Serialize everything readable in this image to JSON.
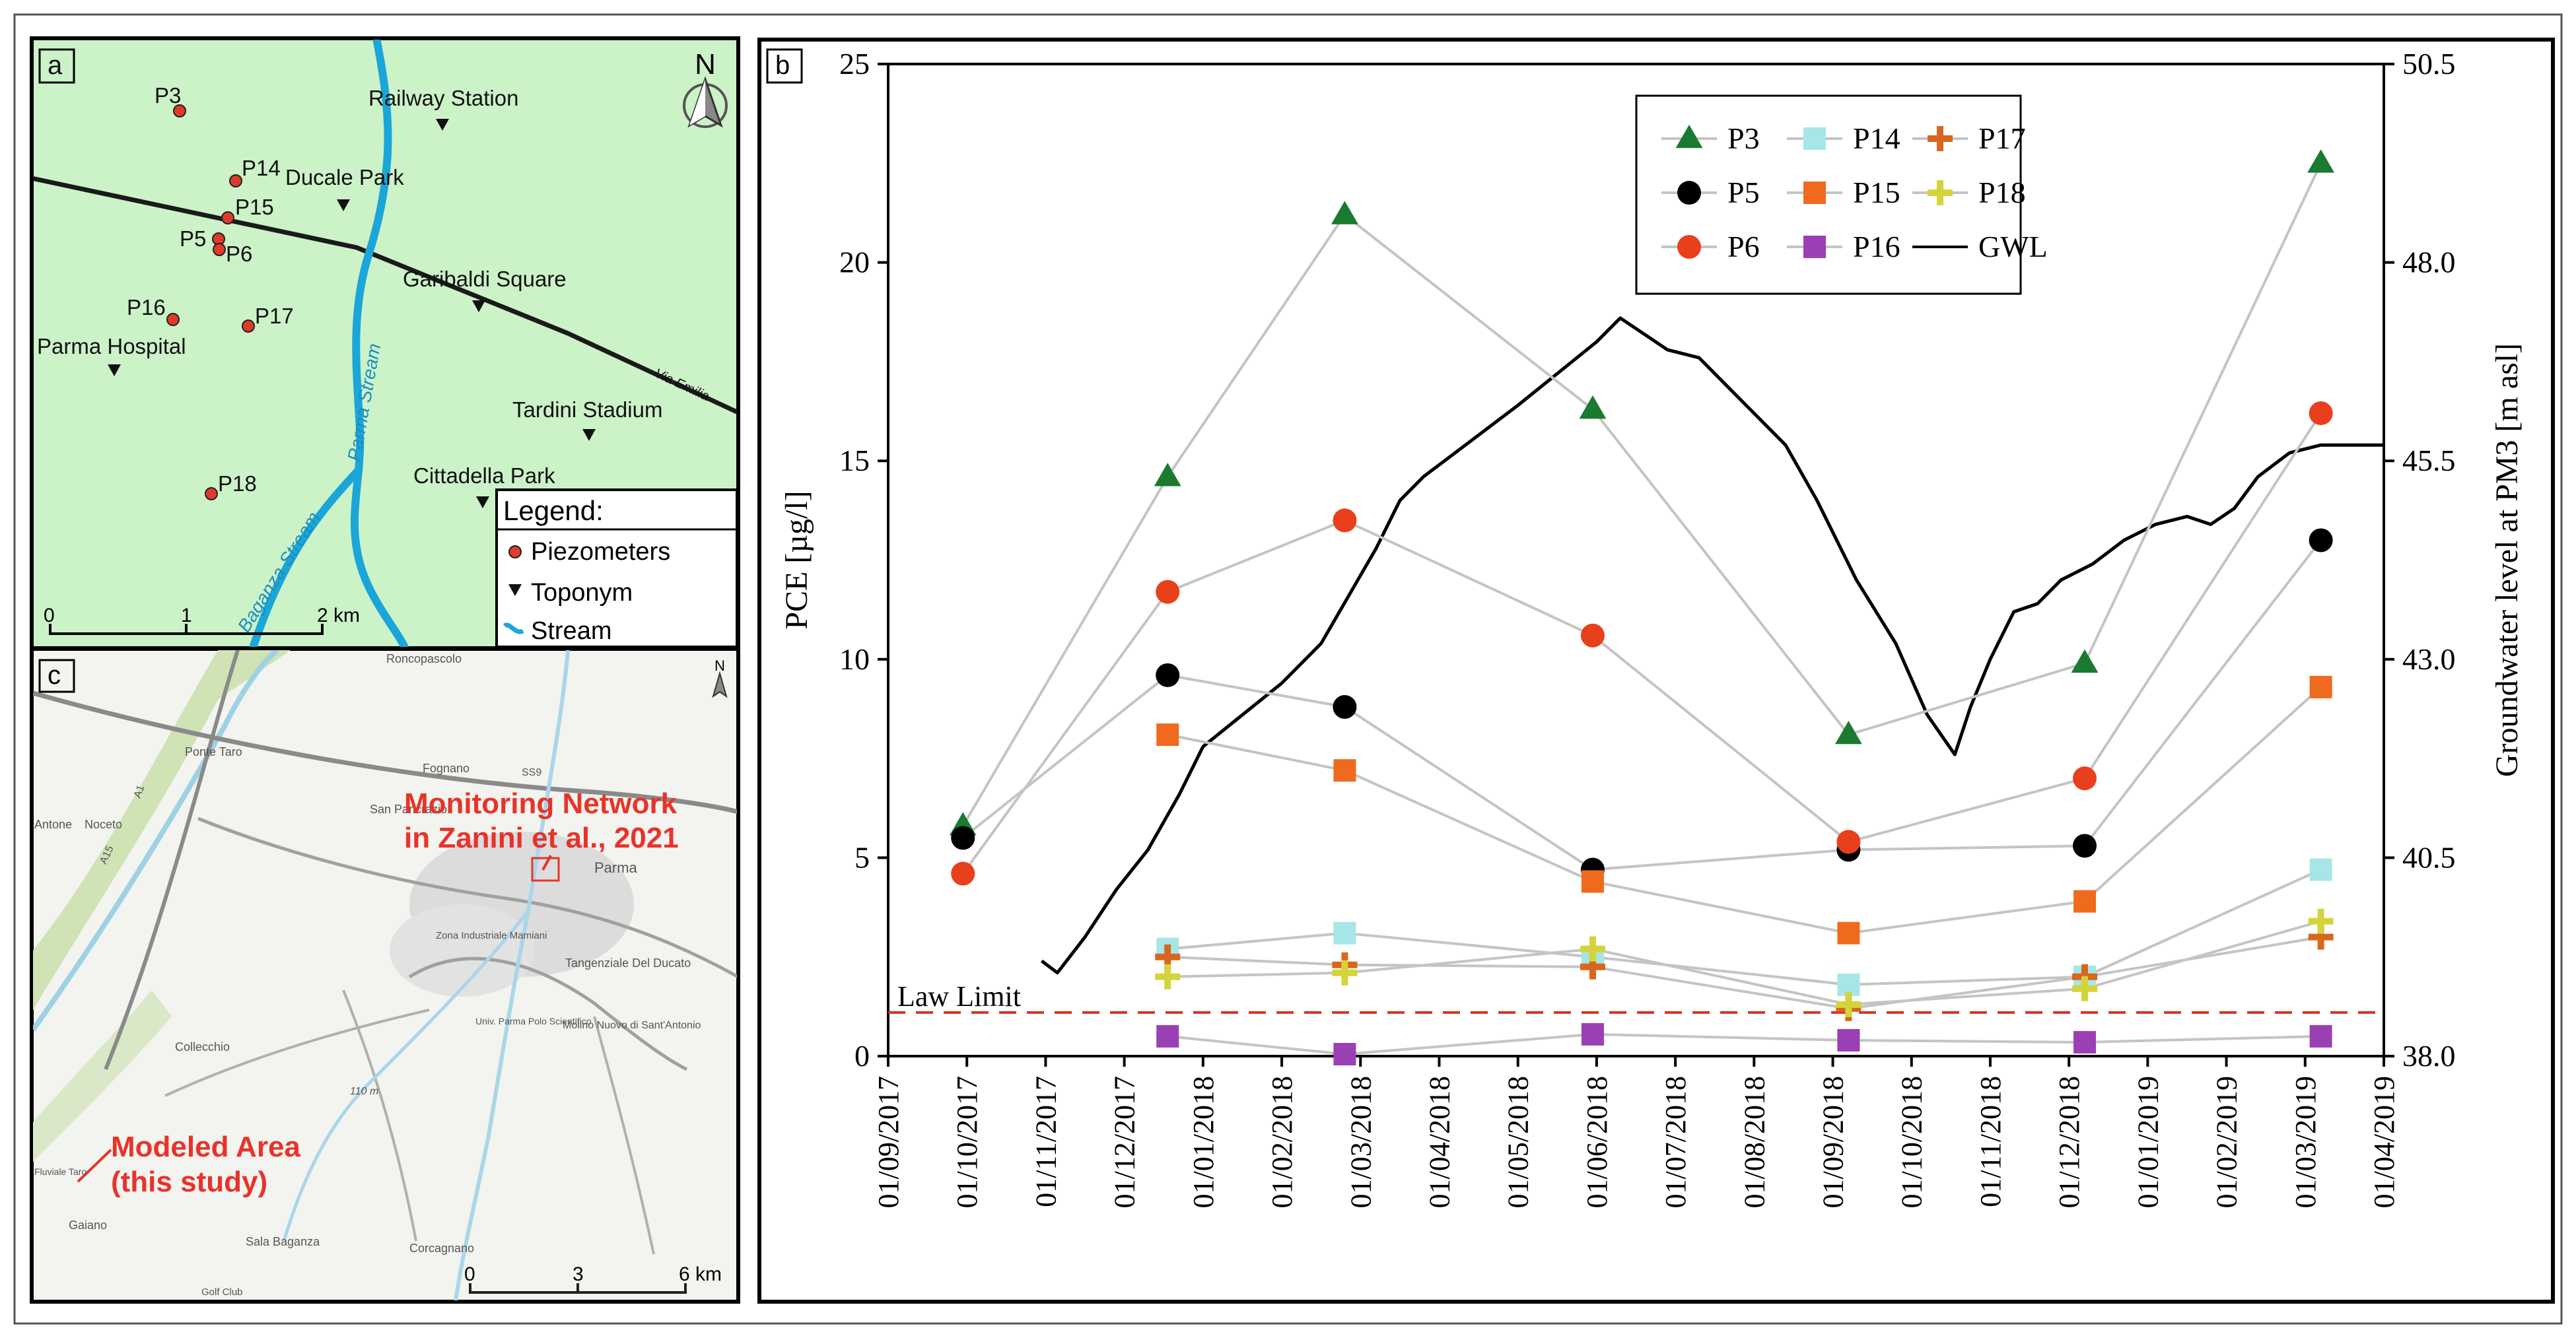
{
  "panels": {
    "a": {
      "label": "a",
      "north": "N",
      "piezometers": [
        "P3",
        "P14",
        "P15",
        "P5",
        "P6",
        "P16",
        "P17",
        "P18"
      ],
      "toponyms": [
        "Railway Station",
        "Ducale Park",
        "Garibaldi Square",
        "Parma Hospital",
        "Tardini Stadium",
        "Cittadella Park"
      ],
      "streams": [
        "Parma Stream",
        "Baganza Stream"
      ],
      "road": "Via Emilia",
      "legend": {
        "title": "Legend:",
        "items": [
          "Piezometers",
          "Toponym",
          "Stream"
        ]
      },
      "scalebar": [
        "0",
        "1",
        "2 km"
      ],
      "colors": {
        "background": "#ccf2c8",
        "stream": "#1aa6d8",
        "piezometer": "#e03a2a"
      }
    },
    "b": {
      "label": "b"
    },
    "c": {
      "label": "c",
      "north": "N",
      "annotation_network": [
        "Monitoring Network",
        "in Zanini et al., 2021"
      ],
      "annotation_model": [
        "Modeled Area",
        "(this study)"
      ],
      "places": [
        "Roncopascolo",
        "Ponte Taro",
        "Fognano",
        "San Pancrazio",
        "Noceto",
        "Antone",
        "Parma",
        "Zona Industriale Mamiani",
        "Tangenziale Del Ducato",
        "Molino Nuovo di Sant'Antonio",
        "Univ. Parma Polo Scientifico",
        "Collecchio",
        "Corcagnano",
        "Sala Baganza",
        "Golf Club",
        "Gaiano",
        "Fluviale Taro",
        "110 m",
        "A15",
        "A1",
        "SS9"
      ],
      "scalebar": [
        "0",
        "3",
        "6 km"
      ],
      "colors": {
        "annotation": "#e8332a"
      }
    }
  },
  "chart_data": {
    "type": "scatter",
    "ylabel": "PCE [µg/l]",
    "ylabel2": "Groundwater level at PM3 [m asl]",
    "ylim": [
      0,
      25
    ],
    "y2lim": [
      38.0,
      50.5
    ],
    "yticks": [
      "0",
      "5",
      "10",
      "15",
      "20",
      "25"
    ],
    "y2ticks": [
      "38.0",
      "40.5",
      "43.0",
      "45.5",
      "48.0",
      "50.5"
    ],
    "xlim_months": [
      0,
      19
    ],
    "xticks": [
      "01/09/2017",
      "01/10/2017",
      "01/11/2017",
      "01/12/2017",
      "01/01/2018",
      "01/02/2018",
      "01/03/2018",
      "01/04/2018",
      "01/05/2018",
      "01/06/2018",
      "01/07/2018",
      "01/08/2018",
      "01/09/2018",
      "01/10/2018",
      "01/11/2018",
      "01/12/2018",
      "01/01/2019",
      "01/02/2019",
      "01/03/2019",
      "01/04/2019"
    ],
    "law_limit": {
      "label": "Law Limit",
      "value": 1.1,
      "color": "#e0301e"
    },
    "series": [
      {
        "name": "P3",
        "marker": "triangle",
        "color": "#1a7a30",
        "t": [
          0.95,
          3.55,
          5.8,
          8.95,
          12.2,
          15.2,
          18.2
        ],
        "values": [
          5.8,
          14.6,
          21.2,
          16.3,
          8.1,
          9.9,
          22.5
        ]
      },
      {
        "name": "P5",
        "marker": "circle",
        "color": "#000000",
        "t": [
          0.95,
          3.55,
          5.8,
          8.95,
          12.2,
          15.2,
          18.2
        ],
        "values": [
          5.5,
          9.6,
          8.8,
          4.7,
          5.2,
          5.3,
          13.0
        ]
      },
      {
        "name": "P6",
        "marker": "circle",
        "color": "#e8401c",
        "t": [
          0.95,
          3.55,
          5.8,
          8.95,
          12.2,
          15.2,
          18.2
        ],
        "values": [
          4.6,
          11.7,
          13.5,
          10.6,
          5.4,
          7.0,
          16.2
        ]
      },
      {
        "name": "P14",
        "marker": "square",
        "color": "#a6e6e6",
        "t": [
          3.55,
          5.8,
          8.95,
          12.2,
          15.2,
          18.2
        ],
        "values": [
          2.7,
          3.1,
          2.5,
          1.8,
          2.0,
          4.7
        ]
      },
      {
        "name": "P15",
        "marker": "square",
        "color": "#f06a1e",
        "t": [
          3.55,
          5.8,
          8.95,
          12.2,
          15.2,
          18.2
        ],
        "values": [
          8.1,
          7.2,
          4.4,
          3.1,
          3.9,
          9.3
        ]
      },
      {
        "name": "P16",
        "marker": "square",
        "color": "#9b3fb5",
        "t": [
          3.55,
          5.8,
          8.95,
          12.2,
          15.2,
          18.2
        ],
        "values": [
          0.5,
          0.05,
          0.55,
          0.4,
          0.35,
          0.5
        ]
      },
      {
        "name": "P17",
        "marker": "plus",
        "color": "#d9661e",
        "t": [
          3.55,
          5.8,
          8.95,
          12.2,
          15.2,
          18.2
        ],
        "values": [
          2.5,
          2.3,
          2.25,
          1.2,
          2.0,
          3.0
        ]
      },
      {
        "name": "P18",
        "marker": "plus",
        "color": "#d4d43a",
        "t": [
          3.55,
          5.8,
          8.95,
          12.2,
          15.2,
          18.2
        ],
        "values": [
          2.0,
          2.1,
          2.7,
          1.3,
          1.7,
          3.4
        ]
      }
    ],
    "gwl": {
      "name": "GWL",
      "axis": "right",
      "color": "#000000",
      "t": [
        1.95,
        2.15,
        2.5,
        2.9,
        3.3,
        3.7,
        4.0,
        4.5,
        5.0,
        5.5,
        5.85,
        6.2,
        6.5,
        6.8,
        7.2,
        7.6,
        8.0,
        8.5,
        9.0,
        9.3,
        9.6,
        9.9,
        10.3,
        10.6,
        11.0,
        11.4,
        11.8,
        12.3,
        12.8,
        13.2,
        13.55,
        13.75,
        14.0,
        14.3,
        14.6,
        14.9,
        15.3,
        15.7,
        16.1,
        16.5,
        16.8,
        17.1,
        17.4,
        17.8,
        18.2,
        18.6,
        19.0
      ],
      "values": [
        39.2,
        39.05,
        39.5,
        40.1,
        40.6,
        41.3,
        41.9,
        42.3,
        42.7,
        43.2,
        43.8,
        44.4,
        45.0,
        45.3,
        45.6,
        45.9,
        46.2,
        46.6,
        47.0,
        47.3,
        47.1,
        46.9,
        46.8,
        46.5,
        46.1,
        45.7,
        45.0,
        44.0,
        43.2,
        42.3,
        41.8,
        42.4,
        43.0,
        43.6,
        43.7,
        44.0,
        44.2,
        44.5,
        44.7,
        44.8,
        44.7,
        44.9,
        45.3,
        45.6,
        45.7,
        45.7,
        45.7
      ]
    },
    "legend": {
      "position": "top-right",
      "columns": [
        [
          "P3",
          "P5",
          "P6"
        ],
        [
          "P14",
          "P15",
          "P16"
        ],
        [
          "P17",
          "P18",
          "GWL"
        ]
      ]
    }
  }
}
